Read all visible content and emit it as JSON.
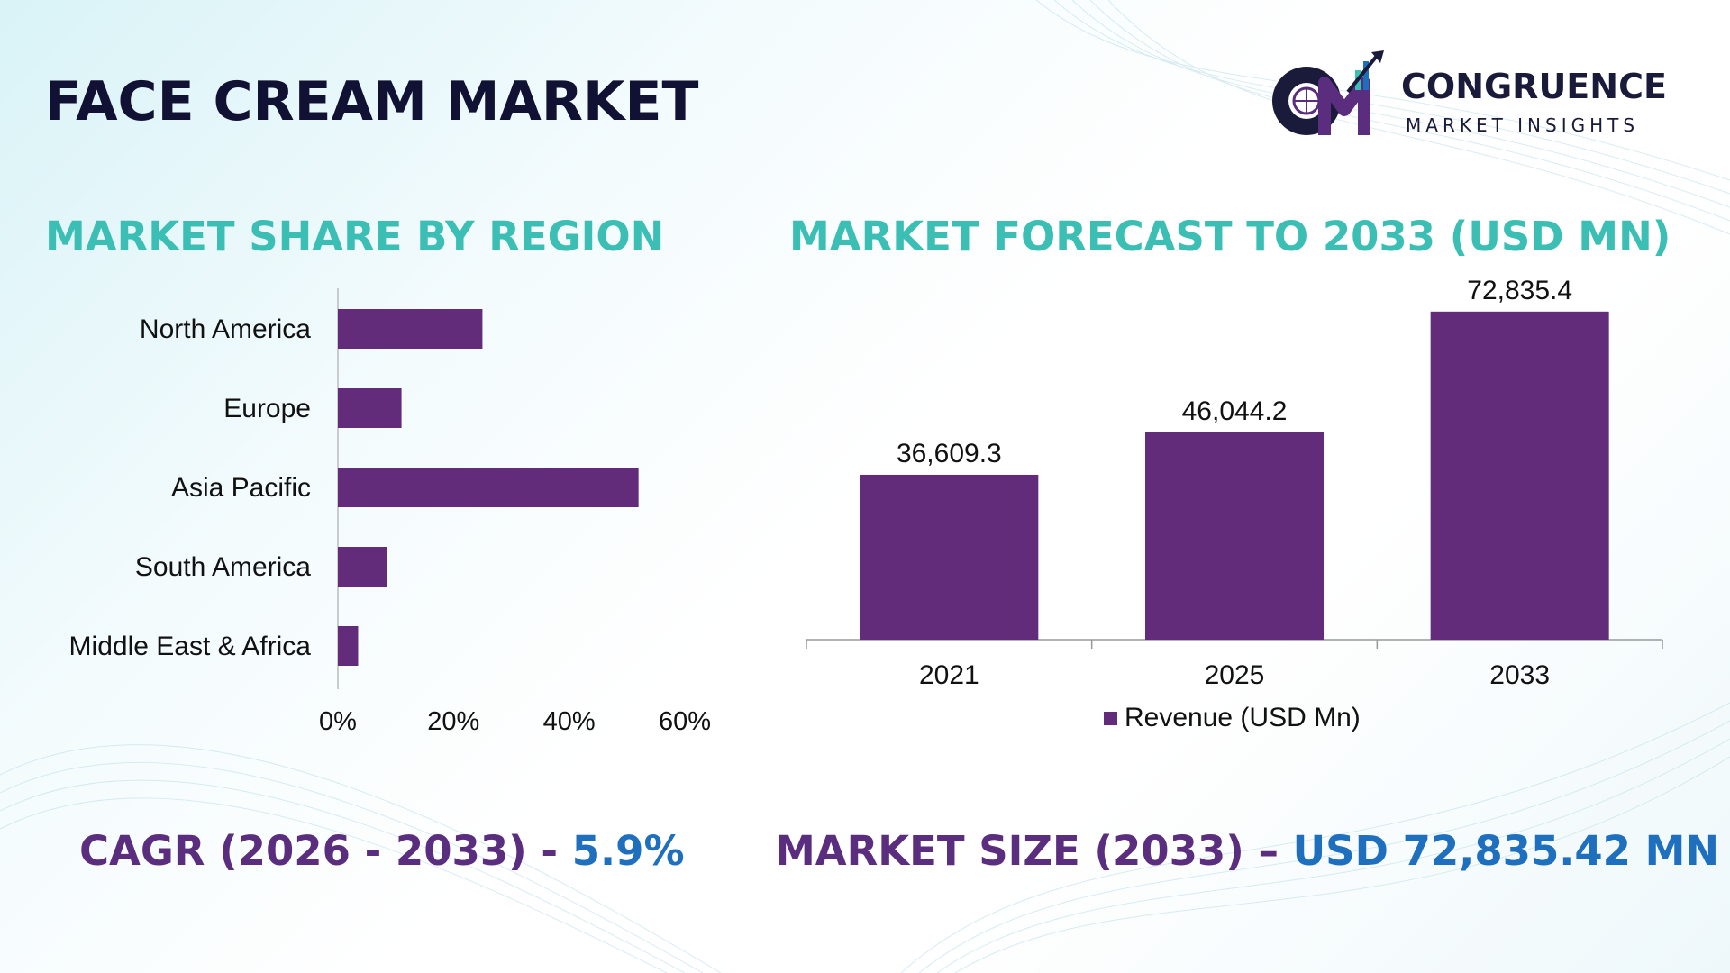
{
  "title": "FACE CREAM MARKET",
  "logo": {
    "name": "CONGRUENCE",
    "tagline": "MARKET INSIGHTS"
  },
  "colors": {
    "bar": "#632c7a",
    "section_title": "#3bbfb5",
    "bottom_text": "#5b2d7f",
    "accent": "#1f6fbf",
    "title": "#111133"
  },
  "left_chart": {
    "section_title": "MARKET SHARE BY REGION"
  },
  "right_chart": {
    "section_title": "MARKET FORECAST TO 2033 (USD MN)",
    "legend": "Revenue (USD Mn)"
  },
  "bottom": {
    "cagr_label": "CAGR (2026 - 2033) - ",
    "cagr_value": "5.9%",
    "size_label": "MARKET SIZE (2033) – ",
    "size_value": "USD 72,835.42 MN"
  },
  "chart_data": [
    {
      "type": "bar",
      "orientation": "horizontal",
      "title": "MARKET SHARE BY REGION",
      "categories": [
        "North America",
        "Europe",
        "Asia Pacific",
        "South America",
        "Middle East & Africa"
      ],
      "values": [
        25,
        11,
        52,
        8.5,
        3.5
      ],
      "xlim": [
        0,
        60
      ],
      "ticks": [
        "0%",
        "20%",
        "40%",
        "60%"
      ],
      "tick_values": [
        0,
        20,
        40,
        60
      ]
    },
    {
      "type": "bar",
      "title": "MARKET FORECAST TO 2033 (USD MN)",
      "categories": [
        "2021",
        "2025",
        "2033"
      ],
      "series": [
        {
          "name": "Revenue (USD Mn)",
          "values": [
            36609.3,
            46044.2,
            72835.4
          ],
          "labels": [
            "36,609.3",
            "46,044.2",
            "72,835.4"
          ]
        }
      ],
      "ylim": [
        0,
        80000
      ],
      "legend": "bottom-center"
    }
  ]
}
